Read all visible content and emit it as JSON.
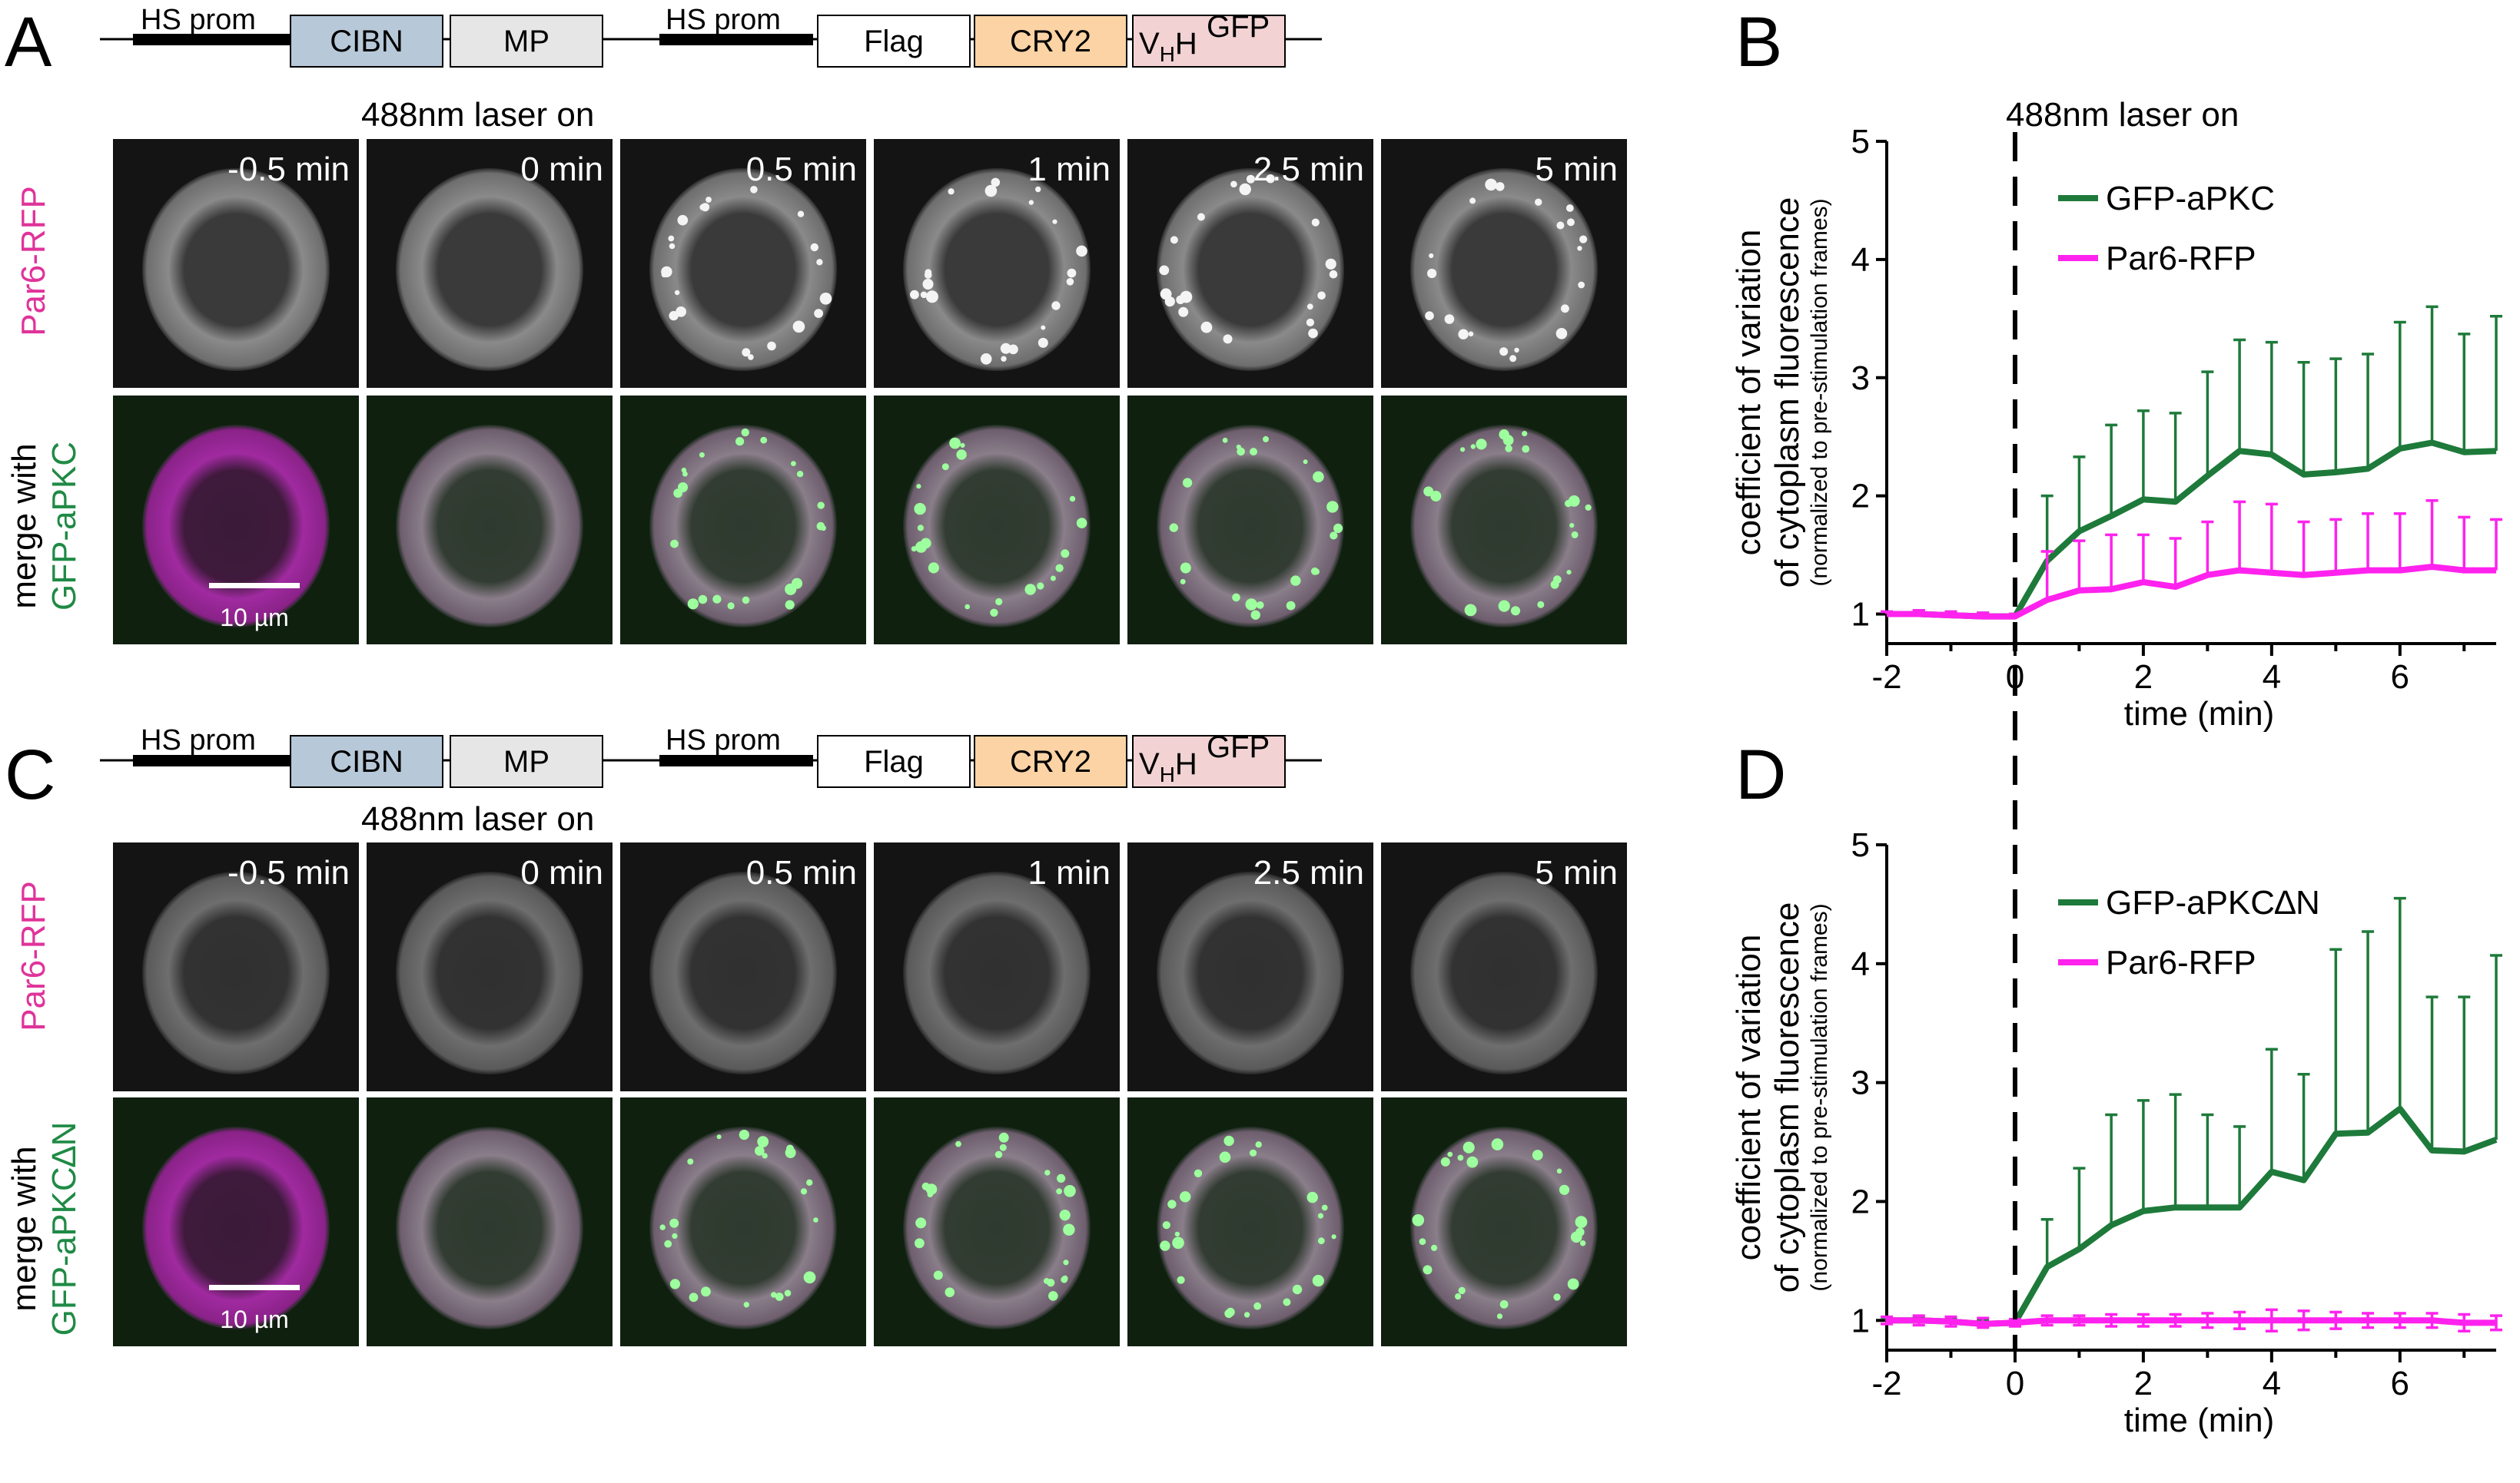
{
  "panels": {
    "A": "A",
    "B": "B",
    "C": "C",
    "D": "D"
  },
  "construct": {
    "promoter_1": "HS prom",
    "box_cibn": "CIBN",
    "box_mp": "MP",
    "promoter_2": "HS prom",
    "box_flag": "Flag",
    "box_cry2": "CRY2",
    "box_vhh_v": "V",
    "box_vhh_sub": "H",
    "box_vhh_h": "H",
    "box_vhh_gfp": "GFP"
  },
  "colors": {
    "cibn": "#b7c8d8",
    "mp": "#e6e6e6",
    "flag": "#ffffff",
    "cry2": "#fbd3a4",
    "vhh": "#f2d2d3",
    "green": "#1e7a3a",
    "magenta": "#ff22ee",
    "label_magenta": "#e0339a",
    "label_green": "#1f8a45"
  },
  "laser_label": "488nm laser on",
  "timepoints": [
    "-0.5 min",
    "0 min",
    "0.5 min",
    "1 min",
    "2.5 min",
    "5 min"
  ],
  "rows": {
    "row1": "Par6-RFP",
    "row2a_line1": "merge with",
    "row2a_line2": "GFP-aPKC",
    "row2c_line1": "merge with",
    "row2c_line2": "GFP-aPKC∆N"
  },
  "scale_bar": "10 µm",
  "chart_data": [
    {
      "panel": "B",
      "type": "line",
      "ylabel_line1": "coefficient of variation",
      "ylabel_line2": "of cytoplasm fluorescence",
      "ylabel_line3": "(normalized to pre-stimulation frames)",
      "xlabel": "time (min)",
      "annotation": "488nm laser on",
      "xlim": [
        -2,
        7.5
      ],
      "ylim": [
        0.75,
        5
      ],
      "xticks": [
        -2,
        0,
        2,
        4,
        6
      ],
      "yticks": [
        1,
        2,
        3,
        4,
        5
      ],
      "x": [
        -2,
        -1.5,
        -1,
        -0.5,
        0,
        0.5,
        1,
        1.5,
        2,
        2.5,
        3,
        3.5,
        4,
        4.5,
        5,
        5.5,
        6,
        6.5,
        7,
        7.5
      ],
      "series": [
        {
          "name": "GFP-aPKC",
          "color": "#1e7a3a",
          "values": [
            1.0,
            1.0,
            0.99,
            0.98,
            0.98,
            1.45,
            1.7,
            1.83,
            1.97,
            1.95,
            2.17,
            2.38,
            2.35,
            2.18,
            2.2,
            2.23,
            2.4,
            2.45,
            2.37,
            2.38
          ],
          "error_upper": [
            1.02,
            1.03,
            1.02,
            1.01,
            1.0,
            2.0,
            2.33,
            2.6,
            2.72,
            2.7,
            3.05,
            3.32,
            3.3,
            3.13,
            3.16,
            3.2,
            3.47,
            3.6,
            3.37,
            3.52
          ]
        },
        {
          "name": "Par6-RFP",
          "color": "#ff22ee",
          "values": [
            1.0,
            1.0,
            0.99,
            0.98,
            0.98,
            1.12,
            1.2,
            1.21,
            1.27,
            1.23,
            1.33,
            1.37,
            1.35,
            1.33,
            1.35,
            1.37,
            1.37,
            1.4,
            1.37,
            1.37
          ],
          "error_upper": [
            1.02,
            1.03,
            1.02,
            1.01,
            1.0,
            1.53,
            1.62,
            1.67,
            1.67,
            1.64,
            1.78,
            1.95,
            1.93,
            1.78,
            1.8,
            1.85,
            1.85,
            1.96,
            1.82,
            1.8
          ]
        }
      ]
    },
    {
      "panel": "D",
      "type": "line",
      "ylabel_line1": "coefficient of variation",
      "ylabel_line2": "of cytoplasm fluorescence",
      "ylabel_line3": "(normalized to pre-stimulation frames)",
      "xlabel": "time (min)",
      "xlim": [
        -2,
        7.5
      ],
      "ylim": [
        0.75,
        5
      ],
      "xticks": [
        -2,
        0,
        2,
        4,
        6
      ],
      "yticks": [
        1,
        2,
        3,
        4,
        5
      ],
      "x": [
        -2,
        -1.5,
        -1,
        -0.5,
        0,
        0.5,
        1,
        1.5,
        2,
        2.5,
        3,
        3.5,
        4,
        4.5,
        5,
        5.5,
        6,
        6.5,
        7,
        7.5
      ],
      "series": [
        {
          "name": "GFP-aPKC∆N",
          "color": "#1e7a3a",
          "values": [
            1.0,
            1.0,
            0.99,
            0.97,
            0.98,
            1.45,
            1.6,
            1.8,
            1.92,
            1.95,
            1.95,
            1.95,
            2.25,
            2.18,
            2.57,
            2.58,
            2.78,
            2.43,
            2.42,
            2.52
          ],
          "error_upper": [
            1.02,
            1.03,
            1.01,
            1.0,
            1.0,
            1.85,
            2.28,
            2.73,
            2.85,
            2.9,
            2.73,
            2.63,
            3.28,
            3.07,
            4.12,
            4.27,
            4.55,
            3.72,
            3.72,
            4.07
          ]
        },
        {
          "name": "Par6-RFP",
          "color": "#ff22ee",
          "values": [
            1.0,
            1.0,
            0.99,
            0.97,
            0.98,
            1.0,
            1.0,
            1.0,
            1.0,
            1.0,
            1.0,
            1.0,
            1.0,
            1.0,
            1.0,
            1.0,
            1.0,
            1.0,
            0.98,
            0.98
          ],
          "error_upper": [
            1.03,
            1.04,
            1.03,
            1.02,
            1.01,
            1.04,
            1.04,
            1.05,
            1.05,
            1.05,
            1.06,
            1.07,
            1.09,
            1.08,
            1.07,
            1.06,
            1.06,
            1.06,
            1.05,
            1.04
          ],
          "error_lower": [
            0.97,
            0.96,
            0.95,
            0.94,
            0.95,
            0.96,
            0.96,
            0.95,
            0.95,
            0.95,
            0.94,
            0.93,
            0.91,
            0.92,
            0.93,
            0.94,
            0.94,
            0.94,
            0.91,
            0.92
          ]
        }
      ]
    }
  ]
}
